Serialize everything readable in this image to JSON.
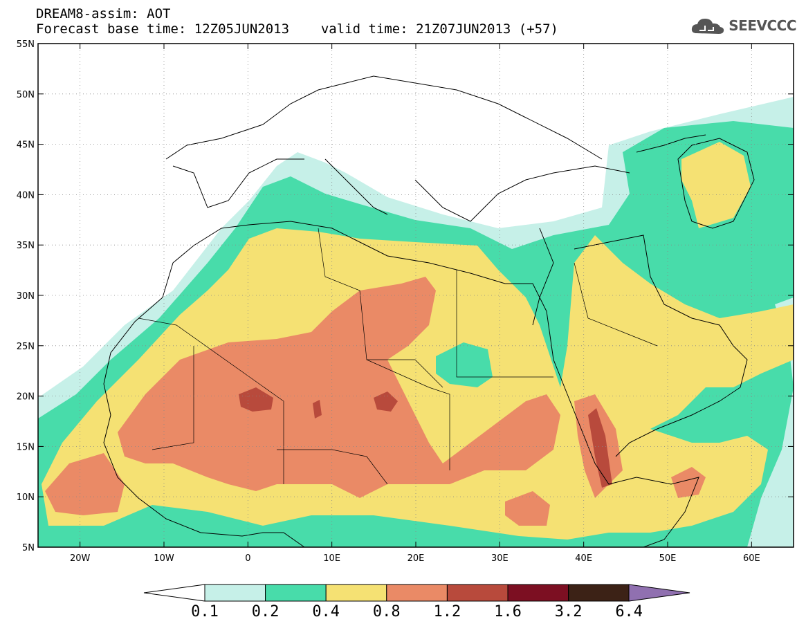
{
  "header": {
    "line1": "DREAM8-assim: AOT",
    "base_time_label": "Forecast base time: 12Z05JUN2013",
    "valid_time_label": "valid time: 21Z07JUN2013 (+57)"
  },
  "logo": {
    "text": "SEEVCCC",
    "icon": "cloud-icon"
  },
  "map": {
    "lon_range": [
      -25,
      65
    ],
    "lat_range": [
      5,
      55
    ],
    "lon_ticks": [
      {
        "value": -20,
        "label": "20W"
      },
      {
        "value": -10,
        "label": "10W"
      },
      {
        "value": 0,
        "label": "0"
      },
      {
        "value": 10,
        "label": "10E"
      },
      {
        "value": 20,
        "label": "20E"
      },
      {
        "value": 30,
        "label": "30E"
      },
      {
        "value": 40,
        "label": "40E"
      },
      {
        "value": 50,
        "label": "50E"
      },
      {
        "value": 60,
        "label": "60E"
      }
    ],
    "lat_ticks": [
      {
        "value": 55,
        "label": "55N"
      },
      {
        "value": 50,
        "label": "50N"
      },
      {
        "value": 45,
        "label": "45N"
      },
      {
        "value": 40,
        "label": "40N"
      },
      {
        "value": 35,
        "label": "35N"
      },
      {
        "value": 30,
        "label": "30N"
      },
      {
        "value": 25,
        "label": "25N"
      },
      {
        "value": 20,
        "label": "20N"
      },
      {
        "value": 15,
        "label": "15N"
      },
      {
        "value": 10,
        "label": "10N"
      },
      {
        "value": 5,
        "label": "5N"
      }
    ],
    "grid": true
  },
  "colorbar": {
    "colors": [
      "#c6f0e8",
      "#48dcaa",
      "#f5e173",
      "#ea8a66",
      "#b84a3c",
      "#7c0f22",
      "#3c2216",
      "#9070b0"
    ],
    "labels": [
      "0.1",
      "0.2",
      "0.4",
      "0.8",
      "1.2",
      "1.6",
      "3.2",
      "6.4"
    ]
  }
}
